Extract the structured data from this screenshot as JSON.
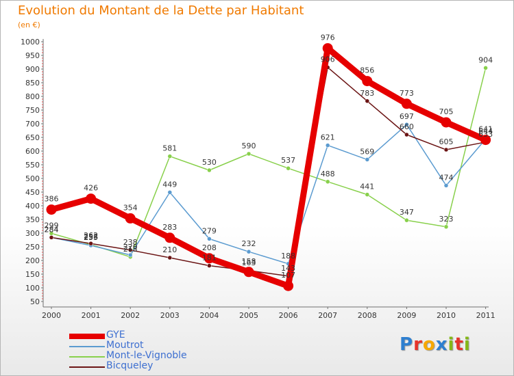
{
  "header": {
    "title": "Evolution du Montant de la Dette par Habitant",
    "subtitle": "(en €)"
  },
  "logo": {
    "text": "Proxiti",
    "letters": [
      {
        "ch": "P",
        "color": "#2e7fd0"
      },
      {
        "ch": "r",
        "color": "#e6332a"
      },
      {
        "ch": "o",
        "color": "#f6a800"
      },
      {
        "ch": "x",
        "color": "#2e7fd0"
      },
      {
        "ch": "i",
        "color": "#84b817"
      },
      {
        "ch": "t",
        "color": "#e6332a"
      },
      {
        "ch": "i",
        "color": "#84b817"
      }
    ]
  },
  "chart_data": {
    "type": "line",
    "title": "Evolution du Montant de la Dette par Habitant",
    "subtitle": "(en €)",
    "x": [
      "2000",
      "2001",
      "2002",
      "2003",
      "2004",
      "2005",
      "2006",
      "2007",
      "2008",
      "2009",
      "2010",
      "2011"
    ],
    "ylim": [
      50,
      1000
    ],
    "yticks": [
      50,
      100,
      150,
      200,
      250,
      300,
      350,
      400,
      450,
      500,
      550,
      600,
      650,
      700,
      750,
      800,
      850,
      900,
      950,
      1000
    ],
    "grid": false,
    "legend_position": "bottom-left",
    "series": [
      {
        "name": "GYE",
        "color": "#e60000",
        "values": [
          386,
          426,
          354,
          283,
          208,
          158,
          107,
          976,
          856,
          773,
          705,
          641
        ]
      },
      {
        "name": "Moutrot",
        "color": "#5b9bd0",
        "values": [
          284,
          255,
          220,
          449,
          279,
          232,
          188,
          621,
          569,
          697,
          474,
          644
        ]
      },
      {
        "name": "Mont-le-Vignoble",
        "color": "#88d04b",
        "values": [
          299,
          258,
          213,
          581,
          530,
          590,
          537,
          488,
          441,
          347,
          323,
          904
        ]
      },
      {
        "name": "Bicqueley",
        "color": "#6b1414",
        "values": [
          284,
          262,
          238,
          210,
          181,
          163,
          143,
          906,
          783,
          660,
          605,
          633
        ]
      }
    ]
  }
}
